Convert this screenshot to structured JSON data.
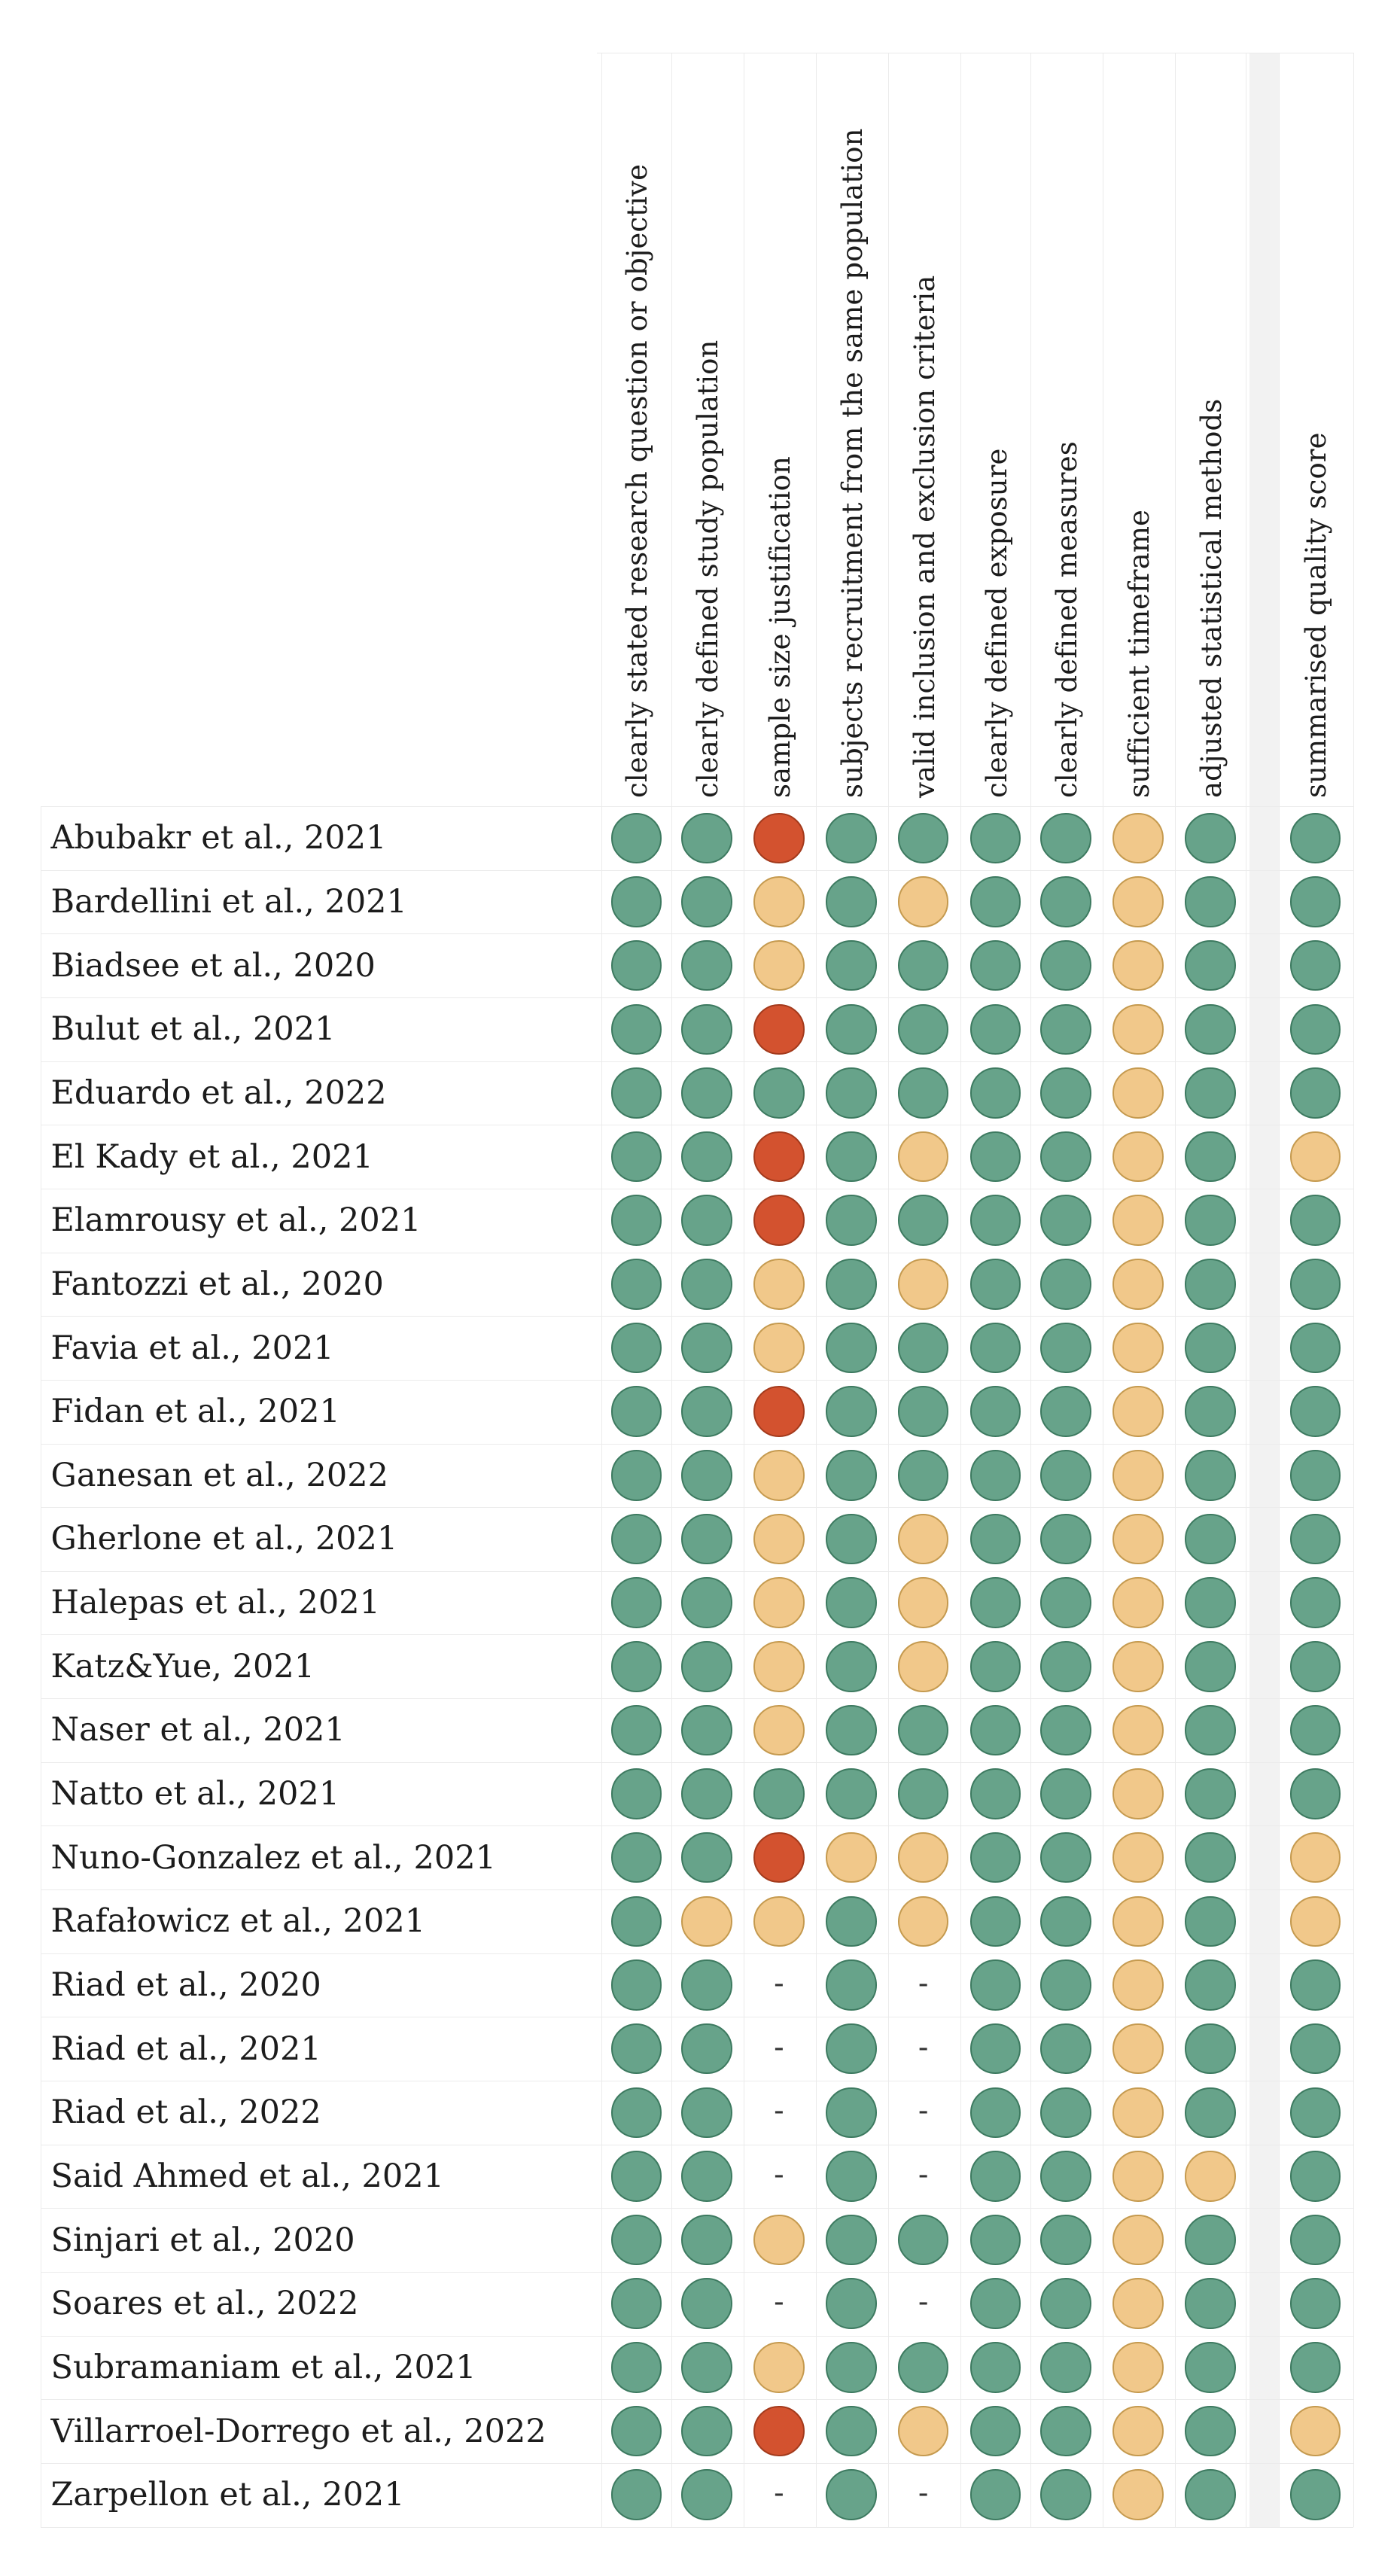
{
  "chart_data": {
    "type": "table",
    "title": "",
    "columns": [
      "clearly stated research question or objective",
      "clearly defined study population",
      "sample size justification",
      "subjects recruitment from the same population",
      "valid inclusion and exclusion criteria",
      "clearly defined exposure",
      "clearly defined measures",
      "sufficient timeframe",
      "adjusted statistical methods",
      "summarised quality score"
    ],
    "legend": {
      "G": "#67a38a",
      "Y": "#f1c88a",
      "R": "#d3522f",
      "-": "-"
    },
    "colors": {
      "green_border": "#3d7a60",
      "yellow_border": "#c59a4f",
      "red_border": "#a33a1c",
      "grid_line": "#ebebeb",
      "separator_band": "#f2f2f2"
    },
    "rows": [
      {
        "study": "Abubakr et al., 2021",
        "ratings": [
          "G",
          "G",
          "R",
          "G",
          "G",
          "G",
          "G",
          "Y",
          "G",
          "G"
        ]
      },
      {
        "study": "Bardellini et al., 2021",
        "ratings": [
          "G",
          "G",
          "Y",
          "G",
          "Y",
          "G",
          "G",
          "Y",
          "G",
          "G"
        ]
      },
      {
        "study": "Biadsee et al., 2020",
        "ratings": [
          "G",
          "G",
          "Y",
          "G",
          "G",
          "G",
          "G",
          "Y",
          "G",
          "G"
        ]
      },
      {
        "study": "Bulut et al., 2021",
        "ratings": [
          "G",
          "G",
          "R",
          "G",
          "G",
          "G",
          "G",
          "Y",
          "G",
          "G"
        ]
      },
      {
        "study": "Eduardo et al., 2022",
        "ratings": [
          "G",
          "G",
          "G",
          "G",
          "G",
          "G",
          "G",
          "Y",
          "G",
          "G"
        ]
      },
      {
        "study": "El Kady et al., 2021",
        "ratings": [
          "G",
          "G",
          "R",
          "G",
          "Y",
          "G",
          "G",
          "Y",
          "G",
          "Y"
        ]
      },
      {
        "study": "Elamrousy et al., 2021",
        "ratings": [
          "G",
          "G",
          "R",
          "G",
          "G",
          "G",
          "G",
          "Y",
          "G",
          "G"
        ]
      },
      {
        "study": "Fantozzi et al., 2020",
        "ratings": [
          "G",
          "G",
          "Y",
          "G",
          "Y",
          "G",
          "G",
          "Y",
          "G",
          "G"
        ]
      },
      {
        "study": "Favia et al., 2021",
        "ratings": [
          "G",
          "G",
          "Y",
          "G",
          "G",
          "G",
          "G",
          "Y",
          "G",
          "G"
        ]
      },
      {
        "study": "Fidan et al., 2021",
        "ratings": [
          "G",
          "G",
          "R",
          "G",
          "G",
          "G",
          "G",
          "Y",
          "G",
          "G"
        ]
      },
      {
        "study": "Ganesan et al., 2022",
        "ratings": [
          "G",
          "G",
          "Y",
          "G",
          "G",
          "G",
          "G",
          "Y",
          "G",
          "G"
        ]
      },
      {
        "study": "Gherlone et al., 2021",
        "ratings": [
          "G",
          "G",
          "Y",
          "G",
          "Y",
          "G",
          "G",
          "Y",
          "G",
          "G"
        ]
      },
      {
        "study": "Halepas et al., 2021",
        "ratings": [
          "G",
          "G",
          "Y",
          "G",
          "Y",
          "G",
          "G",
          "Y",
          "G",
          "G"
        ]
      },
      {
        "study": "Katz&Yue, 2021",
        "ratings": [
          "G",
          "G",
          "Y",
          "G",
          "Y",
          "G",
          "G",
          "Y",
          "G",
          "G"
        ]
      },
      {
        "study": "Naser et al., 2021",
        "ratings": [
          "G",
          "G",
          "Y",
          "G",
          "G",
          "G",
          "G",
          "Y",
          "G",
          "G"
        ]
      },
      {
        "study": "Natto et al., 2021",
        "ratings": [
          "G",
          "G",
          "G",
          "G",
          "G",
          "G",
          "G",
          "Y",
          "G",
          "G"
        ]
      },
      {
        "study": "Nuno-Gonzalez et al., 2021",
        "ratings": [
          "G",
          "G",
          "R",
          "Y",
          "Y",
          "G",
          "G",
          "Y",
          "G",
          "Y"
        ]
      },
      {
        "study": "Rafałowicz et al., 2021",
        "ratings": [
          "G",
          "Y",
          "Y",
          "G",
          "Y",
          "G",
          "G",
          "Y",
          "G",
          "Y"
        ]
      },
      {
        "study": "Riad et al., 2020",
        "ratings": [
          "G",
          "G",
          "-",
          "G",
          "-",
          "G",
          "G",
          "Y",
          "G",
          "G"
        ]
      },
      {
        "study": "Riad et al., 2021",
        "ratings": [
          "G",
          "G",
          "-",
          "G",
          "-",
          "G",
          "G",
          "Y",
          "G",
          "G"
        ]
      },
      {
        "study": "Riad et al., 2022",
        "ratings": [
          "G",
          "G",
          "-",
          "G",
          "-",
          "G",
          "G",
          "Y",
          "G",
          "G"
        ]
      },
      {
        "study": "Said Ahmed et al., 2021",
        "ratings": [
          "G",
          "G",
          "-",
          "G",
          "-",
          "G",
          "G",
          "Y",
          "Y",
          "G"
        ]
      },
      {
        "study": "Sinjari et al., 2020",
        "ratings": [
          "G",
          "G",
          "Y",
          "G",
          "G",
          "G",
          "G",
          "Y",
          "G",
          "G"
        ]
      },
      {
        "study": "Soares et al., 2022",
        "ratings": [
          "G",
          "G",
          "-",
          "G",
          "-",
          "G",
          "G",
          "Y",
          "G",
          "G"
        ]
      },
      {
        "study": "Subramaniam et al., 2021",
        "ratings": [
          "G",
          "G",
          "Y",
          "G",
          "G",
          "G",
          "G",
          "Y",
          "G",
          "G"
        ]
      },
      {
        "study": "Villarroel-Dorrego et al., 2022",
        "ratings": [
          "G",
          "G",
          "R",
          "G",
          "Y",
          "G",
          "G",
          "Y",
          "G",
          "Y"
        ]
      },
      {
        "study": "Zarpellon et al., 2021",
        "ratings": [
          "G",
          "G",
          "-",
          "G",
          "-",
          "G",
          "G",
          "Y",
          "G",
          "G"
        ]
      }
    ]
  }
}
